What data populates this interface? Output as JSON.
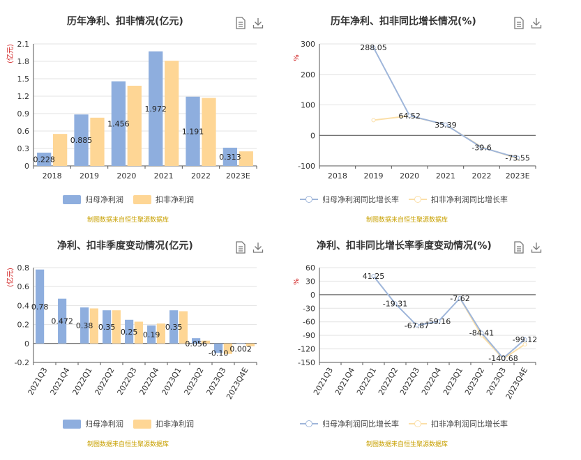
{
  "source_note": "制图数据来自恒生聚源数据库",
  "colors": {
    "series_a": "#8eaede",
    "series_b": "#fed695",
    "axis_red": "#d01f1f",
    "source": "#c8a000"
  },
  "tools": [
    "document-icon",
    "download-icon"
  ],
  "chart_data": [
    {
      "type": "bar",
      "title": "历年净利、扣非情况(亿元)",
      "ylabel": "亿元",
      "ylim": [
        0,
        2.1
      ],
      "yticks": [
        0,
        0.3,
        0.6,
        0.9,
        1.2,
        1.5,
        1.8,
        2.1
      ],
      "ytick_labels": [
        "0",
        "0.3",
        "0.6",
        "0.9",
        "1.2",
        "1.5",
        "1.8",
        "2.1"
      ],
      "categories": [
        "2018",
        "2019",
        "2020",
        "2021",
        "2022",
        "2023E"
      ],
      "series": [
        {
          "name": "归母净利润",
          "values": [
            0.228,
            0.885,
            1.456,
            1.972,
            1.191,
            0.313
          ],
          "labels": [
            "0.228",
            "0.885",
            "1.456",
            "1.972",
            "1.191",
            "0.313"
          ]
        },
        {
          "name": "扣非净利润",
          "values": [
            0.55,
            0.83,
            1.38,
            1.81,
            1.17,
            0.25
          ]
        }
      ],
      "legend": "bottom",
      "grid": true
    },
    {
      "type": "line",
      "title": "历年净利、扣非同比增长情况(%)",
      "ylabel": "%",
      "ylim": [
        -100,
        300
      ],
      "yticks": [
        -100,
        0,
        100,
        200,
        300
      ],
      "ytick_labels": [
        "-100",
        "0",
        "100",
        "200",
        "300"
      ],
      "categories": [
        "2018",
        "2019",
        "2020",
        "2021",
        "2022",
        "2023E"
      ],
      "series": [
        {
          "name": "归母净利润同比增长率",
          "values": [
            null,
            288.05,
            64.52,
            35.39,
            -39.6,
            -73.55
          ],
          "labels": [
            "",
            "288.05",
            "64.52",
            "35.39",
            "-39.6",
            "-73.55"
          ]
        },
        {
          "name": "扣非净利润同比增长率",
          "values": [
            null,
            50,
            64,
            35,
            -38,
            -76
          ]
        }
      ],
      "legend": "bottom",
      "grid": true
    },
    {
      "type": "bar",
      "title": "净利、扣非季度变动情况(亿元)",
      "ylabel": "亿元",
      "ylim": [
        -0.2,
        0.8
      ],
      "yticks": [
        -0.2,
        0,
        0.2,
        0.4,
        0.6,
        0.8
      ],
      "ytick_labels": [
        "-0.2",
        "0",
        "0.2",
        "0.4",
        "0.6",
        "0.8"
      ],
      "categories": [
        "2021Q3",
        "2021Q4",
        "2022Q1",
        "2022Q2",
        "2022Q3",
        "2022Q4",
        "2023Q1",
        "2023Q2",
        "2023Q3",
        "2023Q4E"
      ],
      "series": [
        {
          "name": "归母净利润",
          "values": [
            0.78,
            0.472,
            0.38,
            0.35,
            0.25,
            0.19,
            0.35,
            0.056,
            -0.1,
            0.002
          ],
          "labels": [
            "0.78",
            "0.472",
            "0.38",
            "0.35",
            "0.25",
            "0.19",
            "0.35",
            "0.056",
            "-0.10",
            "0.002"
          ]
        },
        {
          "name": "扣非净利润",
          "values": [
            null,
            null,
            0.37,
            0.35,
            0.23,
            0.21,
            0.34,
            0.03,
            -0.11,
            -0.03
          ]
        }
      ],
      "legend": "bottom",
      "grid": true
    },
    {
      "type": "line",
      "title": "净利、扣非同比增长率季度变动情况(%)",
      "ylabel": "%",
      "ylim": [
        -150,
        60
      ],
      "yticks": [
        -150,
        -120,
        -90,
        -60,
        -30,
        0,
        30,
        60
      ],
      "ytick_labels": [
        "-150",
        "-120",
        "-90",
        "-60",
        "-30",
        "0",
        "30",
        "60"
      ],
      "categories": [
        "2021Q3",
        "2021Q4",
        "2022Q1",
        "2022Q2",
        "2022Q3",
        "2022Q4",
        "2023Q1",
        "2023Q2",
        "2023Q3",
        "2023Q4E"
      ],
      "series": [
        {
          "name": "归母净利润同比增长率",
          "values": [
            null,
            null,
            41.25,
            -19.31,
            -67.87,
            -59.16,
            -7.62,
            -84.41,
            -140.68,
            -99.12
          ],
          "labels": [
            "",
            "",
            "41.25",
            "-19.31",
            "-67.87",
            "-59.16",
            "-7.62",
            "-84.41",
            "-140.68",
            "-99.12"
          ]
        },
        {
          "name": "扣非净利润同比增长率",
          "values": [
            null,
            null,
            null,
            null,
            null,
            null,
            -8,
            -90,
            -142,
            -110
          ]
        }
      ],
      "legend": "bottom",
      "grid": true
    }
  ]
}
